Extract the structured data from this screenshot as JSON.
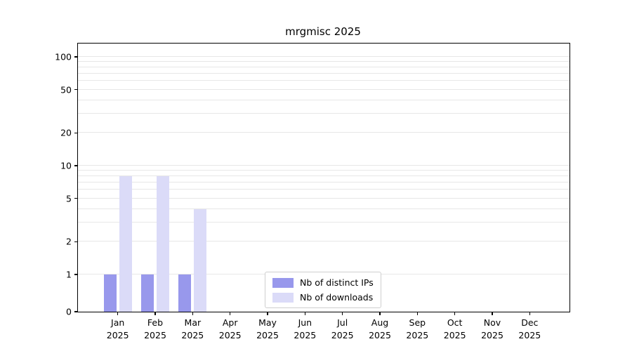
{
  "chart_data": {
    "type": "bar",
    "title": "mrgmisc 2025",
    "x_year": "2025",
    "categories": [
      "Jan",
      "Feb",
      "Mar",
      "Apr",
      "May",
      "Jun",
      "Jul",
      "Aug",
      "Sep",
      "Oct",
      "Nov",
      "Dec"
    ],
    "series": [
      {
        "name": "Nb of distinct IPs",
        "color": "#9898ec",
        "values": [
          1,
          1,
          1,
          0,
          0,
          0,
          0,
          0,
          0,
          0,
          0,
          0
        ]
      },
      {
        "name": "Nb of downloads",
        "color": "#dbdbf8",
        "values": [
          8,
          8,
          4,
          0,
          0,
          0,
          0,
          0,
          0,
          0,
          0,
          0
        ]
      }
    ],
    "yaxis": {
      "scale": "symlog",
      "ticks": [
        0,
        1,
        2,
        5,
        10,
        20,
        50,
        100
      ],
      "minor_gridlines": [
        1,
        2,
        3,
        4,
        5,
        6,
        7,
        8,
        9,
        10,
        20,
        30,
        40,
        50,
        60,
        70,
        80,
        90,
        100
      ],
      "max": 130
    },
    "legend": {
      "position": "lower-center"
    },
    "grid": {
      "axis": "y",
      "color": "#e7e7e7"
    },
    "frame_color": "#000000",
    "background": "#ffffff"
  }
}
